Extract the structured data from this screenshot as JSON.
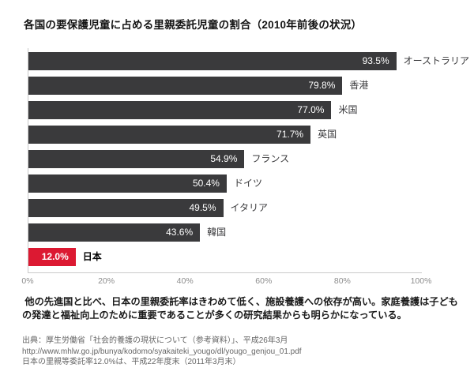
{
  "chart_data": {
    "type": "bar",
    "orientation": "horizontal",
    "title": "各国の要保護児童に占める里親委託児童の割合（2010年前後の状況）",
    "categories": [
      "オーストラリア",
      "香港",
      "米国",
      "英国",
      "フランス",
      "ドイツ",
      "イタリア",
      "韓国",
      "日本"
    ],
    "values": [
      93.5,
      79.8,
      77.0,
      71.7,
      54.9,
      50.4,
      49.5,
      43.6,
      12.0
    ],
    "value_labels": [
      "93.5%",
      "79.8%",
      "77.0%",
      "71.7%",
      "54.9%",
      "50.4%",
      "49.5%",
      "43.6%",
      "12.0%"
    ],
    "x_ticks": [
      "0%",
      "20%",
      "40%",
      "60%",
      "80%",
      "100%"
    ],
    "xlim": [
      0,
      100
    ],
    "grid": false,
    "legend": false,
    "bar_color": "#3a3a3c",
    "highlight_color": "#dc1932",
    "highlight_index": 8,
    "axis_line_color": "#c9c9c9"
  },
  "note": {
    "text": " 他の先進国と比べ、日本の里親委託率はきわめて低く、施設養護への依存が高い。家庭養護は子どもの発達と福祉向上のために重要であることが多くの研究結果からも明らかになっている。"
  },
  "source": {
    "lines": [
      "出典：厚生労働省「社会的養護の現状について（参考資料）」、平成26年3月",
      "http://www.mhlw.go.jp/bunya/kodomo/syakaiteki_yougo/dl/yougo_genjou_01.pdf",
      "日本の里親等委託率12.0%は、平成22年度末（2011年3月末）"
    ]
  }
}
